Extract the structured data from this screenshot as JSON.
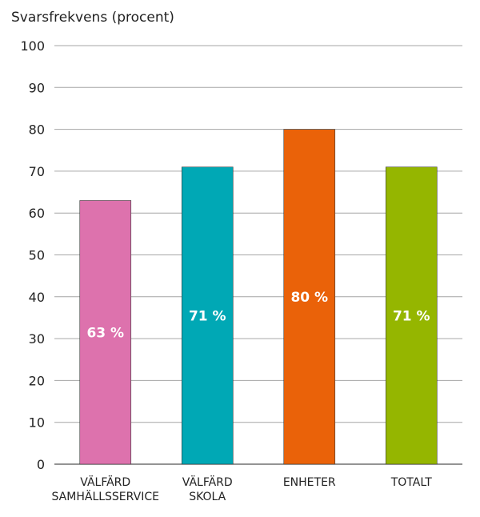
{
  "chart_data": {
    "type": "bar",
    "ylabel": "Svarsfrekvens (procent)",
    "ylim": [
      0,
      100
    ],
    "yticks": [
      "0",
      "10",
      "20",
      "30",
      "40",
      "50",
      "60",
      "70",
      "80",
      "90",
      "100"
    ],
    "grid": true,
    "categories": [
      [
        "VÄLFÄRD",
        "SAMHÄLLSSERVICE"
      ],
      [
        "VÄLFÄRD",
        "SKOLA"
      ],
      [
        "ENHETER"
      ],
      [
        "TOTALT"
      ]
    ],
    "values": [
      63,
      71,
      80,
      71
    ],
    "data_labels": [
      "63 %",
      "71 %",
      "80 %",
      "71 %"
    ],
    "colors": [
      "#dd72ad",
      "#00a8b5",
      "#ea6209",
      "#95b600"
    ]
  }
}
